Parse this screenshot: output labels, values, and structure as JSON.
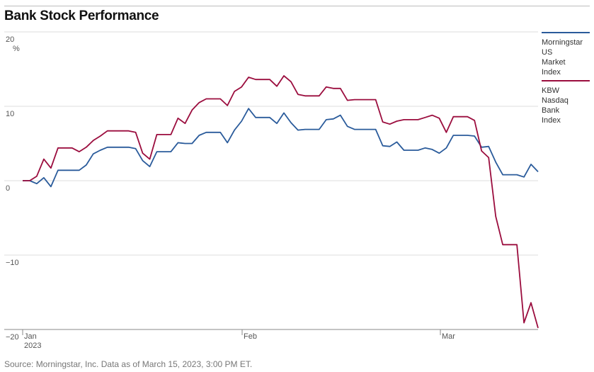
{
  "chart_data": {
    "type": "line",
    "title": "Bank Stock Performance",
    "unit_label": "%",
    "xlabel": "",
    "ylabel": "",
    "ylim": [
      -20,
      20
    ],
    "y_ticks": [
      "20",
      "10",
      "0",
      "−10",
      "−20"
    ],
    "y_tick_values": [
      20,
      10,
      0,
      -10,
      -20
    ],
    "x_ticks": [
      {
        "label": "Jan",
        "sublabel": "2023",
        "index": 0
      },
      {
        "label": "Feb",
        "sublabel": "",
        "index": 22
      },
      {
        "label": "Mar",
        "sublabel": "",
        "index": 40
      }
    ],
    "grid": true,
    "legend_position": "right",
    "series": [
      {
        "name": "Morningstar US Market Index",
        "color": "#2a5b9b",
        "values": [
          0,
          0,
          -0.4,
          0.4,
          -0.8,
          1.4,
          1.4,
          1.4,
          1.4,
          2.1,
          3.6,
          4.1,
          4.5,
          4.5,
          4.5,
          4.5,
          4.3,
          2.7,
          1.9,
          3.9,
          3.9,
          3.9,
          5.1,
          5.0,
          5.0,
          6.1,
          6.5,
          6.5,
          6.5,
          5.1,
          6.8,
          8.0,
          9.7,
          8.5,
          8.5,
          8.5,
          7.7,
          9.1,
          7.8,
          6.8,
          6.9,
          6.9,
          6.9,
          8.2,
          8.3,
          8.8,
          7.3,
          6.9,
          6.9,
          6.9,
          6.9,
          4.7,
          4.6,
          5.2,
          4.1,
          4.1,
          4.1,
          4.4,
          4.2,
          3.7,
          4.4,
          6.1,
          6.1,
          6.1,
          6.0,
          4.5,
          4.6,
          2.5,
          0.8,
          0.8,
          0.8,
          0.5,
          2.2,
          1.2
        ]
      },
      {
        "name": "KBW Nasdaq Bank Index",
        "color": "#9b0d3e",
        "values": [
          0,
          0,
          0.6,
          2.9,
          1.7,
          4.4,
          4.4,
          4.4,
          3.9,
          4.5,
          5.4,
          6.0,
          6.7,
          6.7,
          6.7,
          6.7,
          6.5,
          3.7,
          2.9,
          6.2,
          6.2,
          6.2,
          8.4,
          7.7,
          9.5,
          10.5,
          11.0,
          11.0,
          11.0,
          10.1,
          12.0,
          12.6,
          13.9,
          13.6,
          13.6,
          13.6,
          12.7,
          14.1,
          13.3,
          11.6,
          11.4,
          11.4,
          11.4,
          12.6,
          12.4,
          12.4,
          10.8,
          10.9,
          10.9,
          10.9,
          10.9,
          7.9,
          7.6,
          8.0,
          8.2,
          8.2,
          8.2,
          8.5,
          8.8,
          8.4,
          6.5,
          8.6,
          8.6,
          8.6,
          8.1,
          4.0,
          3.1,
          -4.8,
          -8.6,
          -8.6,
          -8.6,
          -19.1,
          -16.4,
          -19.8
        ]
      }
    ]
  },
  "footer": {
    "source": "Source: Morningstar, Inc. Data as of March 15, 2023, 3:00 PM ET."
  }
}
